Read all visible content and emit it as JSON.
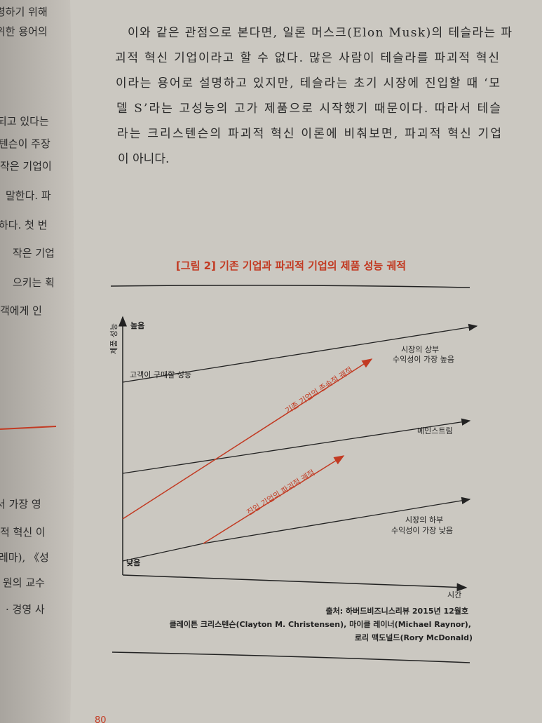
{
  "left_page": {
    "lines": [
      "령하기 위해",
      "위한 용어의",
      "되고 있다는",
      "텐슨이 주장",
      "작은 기업이",
      "말한다. 파",
      "하다. 첫 번",
      "작은 기업",
      "으키는 획",
      "객에게 인",
      "서 가장 영",
      "적 혁신 이",
      "레마), 《성",
      "원의 교수",
      "· 경영 사"
    ]
  },
  "body": {
    "lines": [
      "이와 같은 관점으로 본다면, 일론 머스크(Elon Musk)의 테슬라는 파",
      "괴적 혁신 기업이라고 할 수 없다. 많은 사람이 테슬라를 파괴적 혁신",
      "이라는 용어로 설명하고 있지만, 테슬라는 초기 시장에 진입할 때 ‘모",
      "델 S’라는 고성능의 고가 제품으로 시작했기 때문이다. 따라서 테슬",
      "라는 크리스텐슨의 파괴적 혁신 이론에 비춰보면, 파괴적 혁신 기업",
      "이 아니다."
    ]
  },
  "figure": {
    "title": "[그림 2] 기존 기업과 파괴적 기업의 제품 성능 궤적",
    "y_axis": "제품 성능",
    "high": "높음",
    "low": "낮음",
    "x_axis": "시간",
    "customer_line": "고객이 구매할 성능",
    "upper": "시장의 상부",
    "upper_note": "수익성이 가장 높음",
    "mainstream": "메인스트림",
    "lower": "시장의 하부",
    "lower_note": "수익성이 가장 낮음",
    "sustaining": "기존 기업의 존속적 궤적",
    "disruptive": "진입 기업의 파괴적 궤적",
    "source": [
      "출처: 하버드비즈니스리뷰 2015년 12월호",
      "클레이튼 크리스텐슨(Clayton M. Christensen), 마이클 레이너(Michael Raynor),",
      "로리 맥도널드(Rory McDonald)"
    ]
  },
  "page_number": "80"
}
